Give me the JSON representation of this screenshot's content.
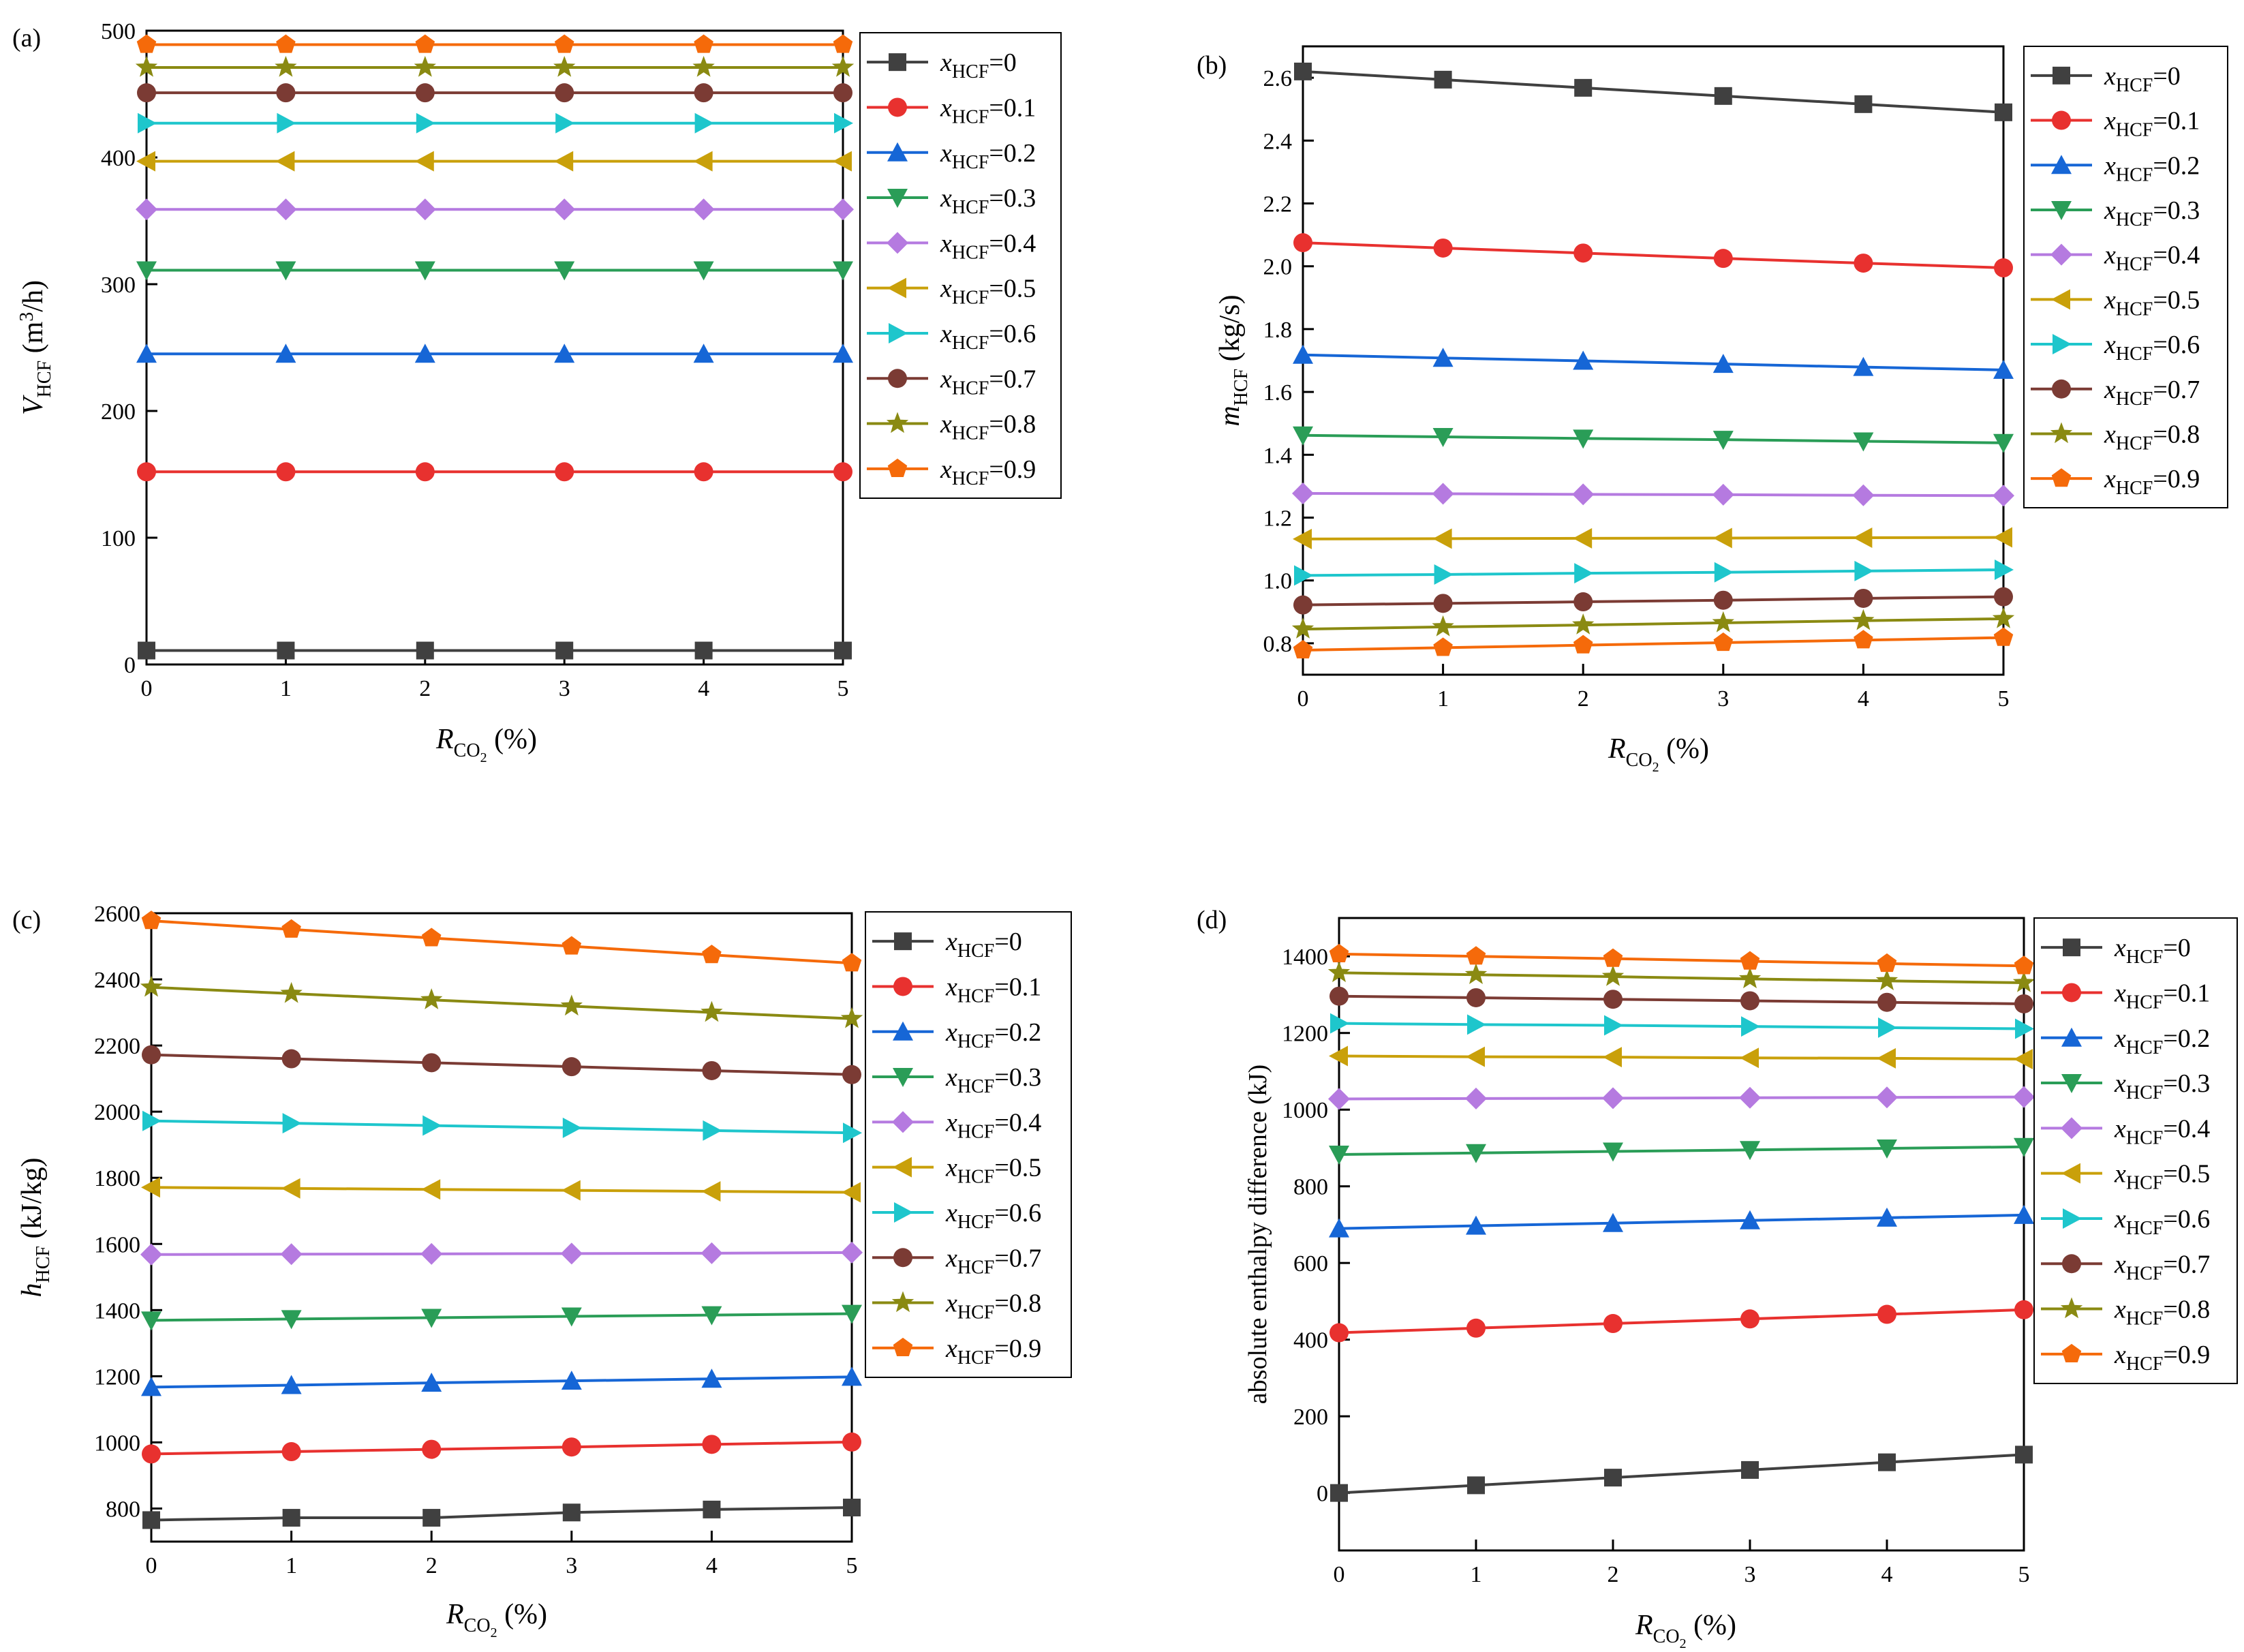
{
  "colors": [
    "#404040",
    "#e8312f",
    "#1666d6",
    "#2a9d57",
    "#b57ae0",
    "#c9a00a",
    "#1ec6cc",
    "#7b3b34",
    "#8a8a12",
    "#f56a0a"
  ],
  "markers": [
    "square",
    "circle",
    "triangle-up",
    "triangle-down",
    "diamond",
    "triangle-left",
    "triangle-right",
    "circle",
    "star",
    "pentagon"
  ],
  "legend_labels": [
    {
      "sym": "x",
      "sub": "HCF",
      "val": "=0"
    },
    {
      "sym": "x",
      "sub": "HCF",
      "val": "=0.1"
    },
    {
      "sym": "x",
      "sub": "HCF",
      "val": "=0.2"
    },
    {
      "sym": "x",
      "sub": "HCF",
      "val": "=0.3"
    },
    {
      "sym": "x",
      "sub": "HCF",
      "val": "=0.4"
    },
    {
      "sym": "x",
      "sub": "HCF",
      "val": "=0.5"
    },
    {
      "sym": "x",
      "sub": "HCF",
      "val": "=0.6"
    },
    {
      "sym": "x",
      "sub": "HCF",
      "val": "=0.7"
    },
    {
      "sym": "x",
      "sub": "HCF",
      "val": "=0.8"
    },
    {
      "sym": "x",
      "sub": "HCF",
      "val": "=0.9"
    }
  ],
  "chart_data": [
    {
      "type": "line",
      "panel_label": "(a)",
      "x": [
        0,
        1,
        2,
        3,
        4,
        5
      ],
      "xlim": [
        0,
        5
      ],
      "xticks": [
        0,
        1,
        2,
        3,
        4,
        5
      ],
      "xlabel": {
        "sym": "R",
        "sub": "CO",
        "subsub": "2",
        "unit": "(%)"
      },
      "ylabel": {
        "sym": "V",
        "sub": "HCF",
        "unit": "(m",
        "sup": "3",
        "unit_end": "/h)"
      },
      "ylim": [
        0,
        500
      ],
      "yticks": [
        0,
        100,
        200,
        300,
        400,
        500
      ],
      "legend": "outside-right",
      "series": [
        {
          "name": "x_HCF=0",
          "values": [
            11,
            11,
            11,
            11,
            11,
            11
          ]
        },
        {
          "name": "x_HCF=0.1",
          "values": [
            152,
            152,
            152,
            152,
            152,
            152
          ]
        },
        {
          "name": "x_HCF=0.2",
          "values": [
            245,
            245,
            245,
            245,
            245,
            245
          ]
        },
        {
          "name": "x_HCF=0.3",
          "values": [
            311,
            311,
            311,
            311,
            311,
            311
          ]
        },
        {
          "name": "x_HCF=0.4",
          "values": [
            359,
            359,
            359,
            359,
            359,
            359
          ]
        },
        {
          "name": "x_HCF=0.5",
          "values": [
            397,
            397,
            397,
            397,
            397,
            397
          ]
        },
        {
          "name": "x_HCF=0.6",
          "values": [
            427,
            427,
            427,
            427,
            427,
            427
          ]
        },
        {
          "name": "x_HCF=0.7",
          "values": [
            451,
            451,
            451,
            451,
            451,
            451
          ]
        },
        {
          "name": "x_HCF=0.8",
          "values": [
            471,
            471,
            471,
            471,
            471,
            471
          ]
        },
        {
          "name": "x_HCF=0.9",
          "values": [
            489,
            489,
            489,
            489,
            489,
            489
          ]
        }
      ]
    },
    {
      "type": "line",
      "panel_label": "(b)",
      "x": [
        0,
        1,
        2,
        3,
        4,
        5
      ],
      "xlim": [
        0,
        5
      ],
      "xticks": [
        0,
        1,
        2,
        3,
        4,
        5
      ],
      "xlabel": {
        "sym": "R",
        "sub": "CO",
        "subsub": "2",
        "unit": "(%)"
      },
      "ylabel": {
        "sym": "m",
        "sub": "HCF",
        "unit": "(kg/s)"
      },
      "ylim": [
        0.7,
        2.7
      ],
      "yticks": [
        0.8,
        1.0,
        1.2,
        1.4,
        1.6,
        1.8,
        2.0,
        2.2,
        2.4,
        2.6
      ],
      "yticklabels": [
        "0.8",
        "1.0",
        "1.2",
        "1.4",
        "1.6",
        "1.8",
        "2.0",
        "2.2",
        "2.4",
        "2.6"
      ],
      "legend": "outside-right",
      "series": [
        {
          "name": "x_HCF=0",
          "values": [
            2.62,
            2.594,
            2.568,
            2.542,
            2.516,
            2.49
          ]
        },
        {
          "name": "x_HCF=0.1",
          "values": [
            2.075,
            2.058,
            2.042,
            2.025,
            2.01,
            1.995
          ]
        },
        {
          "name": "x_HCF=0.2",
          "values": [
            1.718,
            1.708,
            1.699,
            1.689,
            1.679,
            1.67
          ]
        },
        {
          "name": "x_HCF=0.3",
          "values": [
            1.462,
            1.457,
            1.452,
            1.448,
            1.443,
            1.438
          ]
        },
        {
          "name": "x_HCF=0.4",
          "values": [
            1.277,
            1.276,
            1.274,
            1.273,
            1.271,
            1.27
          ]
        },
        {
          "name": "x_HCF=0.5",
          "values": [
            1.132,
            1.133,
            1.134,
            1.135,
            1.136,
            1.137
          ]
        },
        {
          "name": "x_HCF=0.6",
          "values": [
            1.016,
            1.019,
            1.023,
            1.026,
            1.03,
            1.034
          ]
        },
        {
          "name": "x_HCF=0.7",
          "values": [
            0.922,
            0.927,
            0.932,
            0.937,
            0.943,
            0.948
          ]
        },
        {
          "name": "x_HCF=0.8",
          "values": [
            0.845,
            0.852,
            0.858,
            0.865,
            0.872,
            0.878
          ]
        },
        {
          "name": "x_HCF=0.9",
          "values": [
            0.778,
            0.786,
            0.794,
            0.802,
            0.81,
            0.818
          ]
        }
      ]
    },
    {
      "type": "line",
      "panel_label": "(c)",
      "x": [
        0,
        1,
        2,
        3,
        4,
        5
      ],
      "xlim": [
        0,
        5
      ],
      "xticks": [
        0,
        1,
        2,
        3,
        4,
        5
      ],
      "xlabel": {
        "sym": "R",
        "sub": "CO",
        "subsub": "2",
        "unit": "(%)"
      },
      "ylabel": {
        "sym": "h",
        "sub": "HCF",
        "unit": "(kJ/kg)"
      },
      "ylim": [
        700,
        2600
      ],
      "yticks": [
        800,
        1000,
        1200,
        1400,
        1600,
        1800,
        2000,
        2200,
        2400,
        2600
      ],
      "legend": "outside-right",
      "series": [
        {
          "name": "x_HCF=0",
          "values": [
            765,
            772,
            772,
            788,
            797,
            803
          ]
        },
        {
          "name": "x_HCF=0.1",
          "values": [
            965,
            972,
            979,
            986,
            994,
            1001
          ]
        },
        {
          "name": "x_HCF=0.2",
          "values": [
            1167,
            1173,
            1180,
            1186,
            1192,
            1198
          ]
        },
        {
          "name": "x_HCF=0.3",
          "values": [
            1369,
            1373,
            1377,
            1381,
            1385,
            1389
          ]
        },
        {
          "name": "x_HCF=0.4",
          "values": [
            1568,
            1569,
            1570,
            1571,
            1572,
            1574
          ]
        },
        {
          "name": "x_HCF=0.5",
          "values": [
            1771,
            1768,
            1765,
            1762,
            1759,
            1756
          ]
        },
        {
          "name": "x_HCF=0.6",
          "values": [
            1972,
            1965,
            1958,
            1951,
            1943,
            1936
          ]
        },
        {
          "name": "x_HCF=0.7",
          "values": [
            2172,
            2160,
            2148,
            2136,
            2124,
            2112
          ]
        },
        {
          "name": "x_HCF=0.8",
          "values": [
            2376,
            2357,
            2338,
            2319,
            2300,
            2281
          ]
        },
        {
          "name": "x_HCF=0.9",
          "values": [
            2577,
            2551,
            2525,
            2500,
            2474,
            2449
          ]
        }
      ]
    },
    {
      "type": "line",
      "panel_label": "(d)",
      "x": [
        0,
        1,
        2,
        3,
        4,
        5
      ],
      "xlim": [
        0,
        5
      ],
      "xticks": [
        0,
        1,
        2,
        3,
        4,
        5
      ],
      "xlabel": {
        "sym": "R",
        "sub": "CO",
        "subsub": "2",
        "unit": "(%)"
      },
      "ylabel_text": "absolute enthalpy difference  (kJ)",
      "ylim": [
        -150,
        1500
      ],
      "yticks": [
        0,
        200,
        400,
        600,
        800,
        1000,
        1200,
        1400
      ],
      "legend": "outside-right",
      "series": [
        {
          "name": "x_HCF=0",
          "values": [
            0,
            20,
            40,
            60,
            80,
            100
          ]
        },
        {
          "name": "x_HCF=0.1",
          "values": [
            418,
            430,
            442,
            454,
            466,
            478
          ]
        },
        {
          "name": "x_HCF=0.2",
          "values": [
            690,
            697,
            704,
            711,
            718,
            725
          ]
        },
        {
          "name": "x_HCF=0.3",
          "values": [
            883,
            887,
            891,
            895,
            899,
            903
          ]
        },
        {
          "name": "x_HCF=0.4",
          "values": [
            1028,
            1029,
            1030,
            1031,
            1032,
            1033
          ]
        },
        {
          "name": "x_HCF=0.5",
          "values": [
            1140,
            1138,
            1137,
            1135,
            1134,
            1132
          ]
        },
        {
          "name": "x_HCF=0.6",
          "values": [
            1225,
            1222,
            1220,
            1217,
            1214,
            1211
          ]
        },
        {
          "name": "x_HCF=0.7",
          "values": [
            1296,
            1292,
            1288,
            1284,
            1280,
            1276
          ]
        },
        {
          "name": "x_HCF=0.8",
          "values": [
            1357,
            1352,
            1347,
            1341,
            1336,
            1331
          ]
        },
        {
          "name": "x_HCF=0.9",
          "values": [
            1406,
            1400,
            1394,
            1387,
            1381,
            1375
          ]
        }
      ]
    }
  ]
}
